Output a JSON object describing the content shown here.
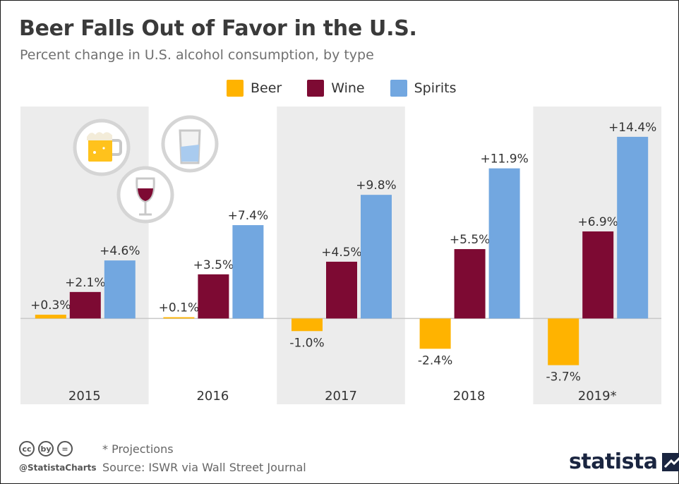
{
  "header": {
    "title": "Beer Falls Out of Favor in the U.S.",
    "subtitle": "Percent change in U.S. alcohol consumption, by type"
  },
  "legend": [
    {
      "label": "Beer",
      "color": "#ffb300"
    },
    {
      "label": "Wine",
      "color": "#7d0a33"
    },
    {
      "label": "Spirits",
      "color": "#72a7e0"
    }
  ],
  "chart_data": {
    "type": "bar",
    "categories": [
      "2015",
      "2016",
      "2017",
      "2018",
      "2019*"
    ],
    "series": [
      {
        "name": "Beer",
        "values": [
          0.3,
          0.1,
          -1.0,
          -2.4,
          -3.7
        ],
        "labels": [
          "+0.3%",
          "+0.1%",
          "-1.0%",
          "-2.4%",
          "-3.7%"
        ],
        "color": "#ffb300"
      },
      {
        "name": "Wine",
        "values": [
          2.1,
          3.5,
          4.5,
          5.5,
          6.9
        ],
        "labels": [
          "+2.1%",
          "+3.5%",
          "+4.5%",
          "+5.5%",
          "+6.9%"
        ],
        "color": "#7d0a33"
      },
      {
        "name": "Spirits",
        "values": [
          4.6,
          7.4,
          9.8,
          11.9,
          14.4
        ],
        "labels": [
          "+4.6%",
          "+7.4%",
          "+9.8%",
          "+11.9%",
          "+14.4%"
        ],
        "color": "#72a7e0"
      }
    ],
    "title": "Beer Falls Out of Favor in the U.S.",
    "subtitle": "Percent change in U.S. alcohol consumption, by type",
    "xlabel": "",
    "ylabel": "",
    "ylim": [
      -6.8,
      16.8
    ],
    "grid": false,
    "legend_position": "top-center",
    "band_color": "#ececec",
    "icons": [
      "beer-mug-icon",
      "water-glass-icon",
      "wine-glass-icon"
    ]
  },
  "footer": {
    "note": "* Projections",
    "source": "Source: ISWR via Wall Street Journal",
    "handle": "@StatistaCharts",
    "cc_icons": [
      "cc",
      "by",
      "="
    ],
    "brand": "statista"
  }
}
